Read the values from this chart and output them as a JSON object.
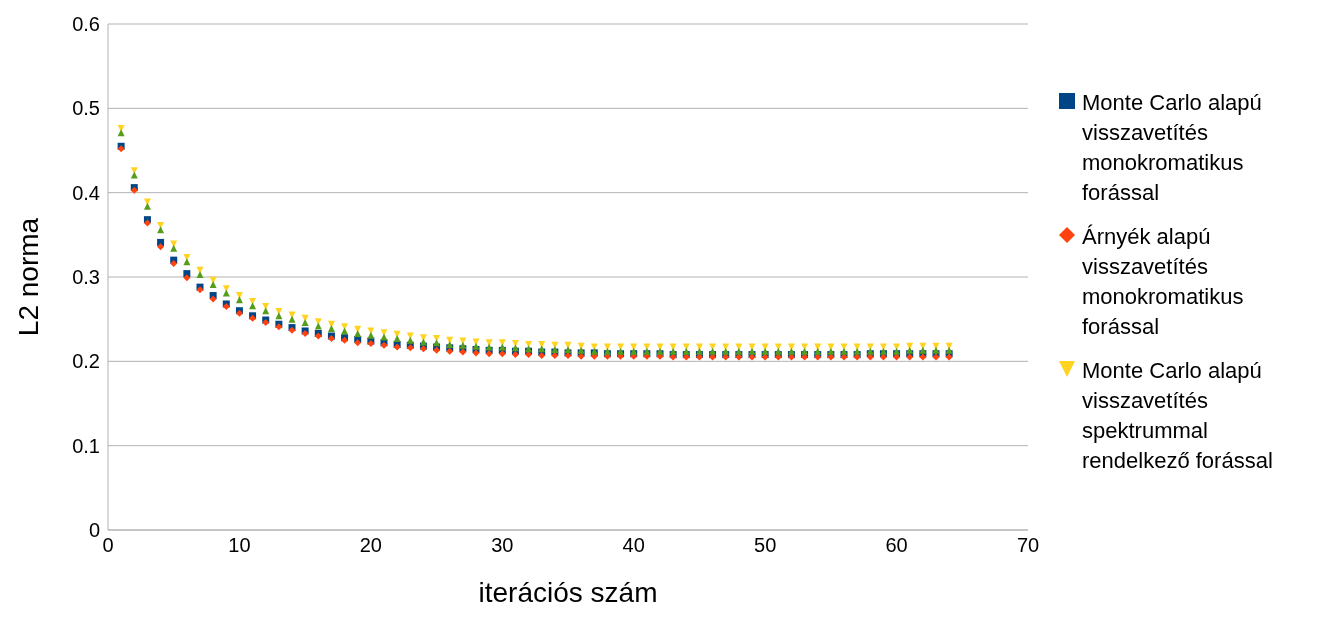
{
  "chart_data": {
    "type": "scatter",
    "xlabel": "iterációs szám",
    "ylabel": "L2 norma",
    "xlim": [
      0,
      70
    ],
    "xticks": [
      0,
      10,
      20,
      30,
      40,
      50,
      60,
      70
    ],
    "ylim": [
      0,
      0.6
    ],
    "yticks": [
      0,
      0.1,
      0.2,
      0.3,
      0.4,
      0.5,
      0.6
    ],
    "grid": "y",
    "legend": "right",
    "x": [
      1,
      2,
      3,
      4,
      5,
      6,
      7,
      8,
      9,
      10,
      11,
      12,
      13,
      14,
      15,
      16,
      17,
      18,
      19,
      20,
      21,
      22,
      23,
      24,
      25,
      26,
      27,
      28,
      29,
      30,
      31,
      32,
      33,
      34,
      35,
      36,
      37,
      38,
      39,
      40,
      41,
      42,
      43,
      44,
      45,
      46,
      47,
      48,
      49,
      50,
      51,
      52,
      53,
      54,
      55,
      56,
      57,
      58,
      59,
      60,
      61,
      62,
      63,
      64
    ],
    "series": [
      {
        "name": "Monte Carlo alapú visszavetítés monokromatikus forással",
        "color": "#004586",
        "marker": "square",
        "values": [
          0.455,
          0.406,
          0.368,
          0.341,
          0.32,
          0.304,
          0.288,
          0.278,
          0.268,
          0.26,
          0.254,
          0.249,
          0.244,
          0.24,
          0.236,
          0.233,
          0.23,
          0.228,
          0.226,
          0.224,
          0.222,
          0.22,
          0.219,
          0.218,
          0.217,
          0.216,
          0.215,
          0.214,
          0.213,
          0.213,
          0.212,
          0.212,
          0.211,
          0.211,
          0.21,
          0.21,
          0.21,
          0.209,
          0.209,
          0.209,
          0.209,
          0.209,
          0.208,
          0.208,
          0.208,
          0.208,
          0.208,
          0.208,
          0.208,
          0.208,
          0.208,
          0.208,
          0.208,
          0.208,
          0.208,
          0.208,
          0.208,
          0.209,
          0.209,
          0.209,
          0.209,
          0.209,
          0.209,
          0.209
        ]
      },
      {
        "name": "Árnyék alapú visszavetítés monokromatikus forással",
        "color": "#ff420e",
        "marker": "diamond",
        "values": [
          0.452,
          0.403,
          0.364,
          0.336,
          0.316,
          0.299,
          0.285,
          0.274,
          0.265,
          0.257,
          0.251,
          0.246,
          0.241,
          0.237,
          0.233,
          0.23,
          0.227,
          0.225,
          0.222,
          0.221,
          0.219,
          0.217,
          0.216,
          0.215,
          0.213,
          0.212,
          0.211,
          0.21,
          0.209,
          0.209,
          0.208,
          0.208,
          0.207,
          0.207,
          0.207,
          0.206,
          0.206,
          0.206,
          0.206,
          0.206,
          0.206,
          0.206,
          0.205,
          0.205,
          0.205,
          0.205,
          0.205,
          0.205,
          0.205,
          0.205,
          0.205,
          0.205,
          0.205,
          0.205,
          0.205,
          0.205,
          0.205,
          0.205,
          0.205,
          0.205,
          0.205,
          0.205,
          0.205,
          0.205
        ]
      },
      {
        "name": "Monte Carlo alapú visszavetítés spektrummal rendelkező forással",
        "color": "#ffd320",
        "marker": "triangle-down",
        "values": [
          0.476,
          0.426,
          0.389,
          0.361,
          0.339,
          0.323,
          0.308,
          0.296,
          0.286,
          0.278,
          0.271,
          0.265,
          0.259,
          0.255,
          0.251,
          0.247,
          0.244,
          0.241,
          0.238,
          0.236,
          0.234,
          0.232,
          0.23,
          0.228,
          0.227,
          0.225,
          0.224,
          0.223,
          0.222,
          0.222,
          0.221,
          0.22,
          0.22,
          0.219,
          0.219,
          0.218,
          0.217,
          0.217,
          0.217,
          0.217,
          0.217,
          0.217,
          0.217,
          0.217,
          0.217,
          0.217,
          0.217,
          0.217,
          0.217,
          0.217,
          0.217,
          0.217,
          0.217,
          0.217,
          0.217,
          0.217,
          0.217,
          0.217,
          0.217,
          0.217,
          0.218,
          0.218,
          0.218,
          0.218
        ]
      },
      {
        "color": "#579d1c",
        "marker": "triangle",
        "values": [
          0.471,
          0.421,
          0.384,
          0.356,
          0.334,
          0.318,
          0.303,
          0.291,
          0.281,
          0.273,
          0.266,
          0.26,
          0.254,
          0.25,
          0.246,
          0.242,
          0.239,
          0.236,
          0.233,
          0.231,
          0.229,
          0.227,
          0.225,
          0.223,
          0.222,
          0.22,
          0.219,
          0.218,
          0.217,
          0.217,
          0.216,
          0.215,
          0.215,
          0.214,
          0.214,
          0.213,
          0.212,
          0.212,
          0.212,
          0.212,
          0.212,
          0.212,
          0.212,
          0.212,
          0.212,
          0.212,
          0.212,
          0.212,
          0.212,
          0.212,
          0.212,
          0.212,
          0.212,
          0.212,
          0.212,
          0.212,
          0.212,
          0.212,
          0.212,
          0.212,
          0.213,
          0.213,
          0.213,
          0.213
        ]
      }
    ]
  }
}
